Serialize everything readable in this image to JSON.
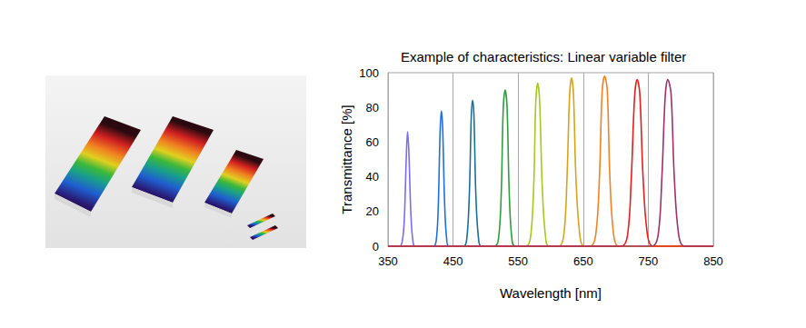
{
  "chart_data": {
    "type": "line",
    "title": "Example of characteristics: Linear variable filter",
    "x_label": "Wavelength [nm]",
    "y_label": "Transmittance [%]",
    "xlim": [
      350,
      850
    ],
    "xticks": [
      350,
      450,
      550,
      650,
      750,
      850
    ],
    "ylim": [
      0,
      100
    ],
    "yticks": [
      0,
      20,
      40,
      60,
      80,
      100
    ],
    "grid": true,
    "series": [
      {
        "color": "#7b6cf0",
        "x": [
          350,
          368,
          372,
          375,
          378,
          380,
          382,
          385,
          388,
          392,
          850
        ],
        "values": [
          0,
          0,
          3,
          15,
          50,
          66,
          55,
          20,
          4,
          0,
          0
        ]
      },
      {
        "color": "#1f6fe0",
        "x": [
          350,
          420,
          424,
          427,
          430,
          432,
          434,
          437,
          440,
          444,
          850
        ],
        "values": [
          0,
          0,
          3,
          20,
          65,
          78,
          68,
          25,
          5,
          0,
          0
        ]
      },
      {
        "color": "#1a6f96",
        "x": [
          350,
          466,
          471,
          475,
          478,
          480,
          482,
          485,
          489,
          494,
          850
        ],
        "values": [
          0,
          0,
          4,
          30,
          75,
          84,
          76,
          30,
          5,
          0,
          0
        ]
      },
      {
        "color": "#2e9e3e",
        "x": [
          350,
          514,
          520,
          524,
          527,
          530,
          533,
          536,
          540,
          546,
          850
        ],
        "values": [
          0,
          0,
          5,
          30,
          78,
          90,
          80,
          35,
          6,
          0,
          0
        ]
      },
      {
        "color": "#a6c81e",
        "x": [
          350,
          562,
          569,
          574,
          577,
          580,
          583,
          587,
          592,
          598,
          850
        ],
        "values": [
          0,
          0,
          5,
          35,
          82,
          94,
          84,
          35,
          6,
          0,
          0
        ]
      },
      {
        "color": "#d4a41a",
        "x": [
          350,
          612,
          620,
          625,
          629,
          632,
          635,
          639,
          645,
          652,
          850
        ],
        "values": [
          0,
          0,
          6,
          38,
          86,
          97,
          88,
          38,
          6,
          0,
          0
        ]
      },
      {
        "color": "#f08224",
        "x": [
          350,
          660,
          669,
          675,
          679,
          683,
          687,
          691,
          697,
          705,
          850
        ],
        "values": [
          0,
          0,
          6,
          40,
          88,
          98,
          90,
          40,
          6,
          0,
          0
        ]
      },
      {
        "color": "#e2201c",
        "x": [
          350,
          708,
          718,
          724,
          729,
          733,
          737,
          742,
          749,
          758,
          850
        ],
        "values": [
          0,
          0,
          6,
          40,
          86,
          96,
          88,
          40,
          6,
          0,
          0
        ]
      },
      {
        "color": "#a0306a",
        "x": [
          350,
          755,
          765,
          771,
          776,
          780,
          785,
          790,
          797,
          806,
          850
        ],
        "values": [
          0,
          0,
          6,
          40,
          86,
          96,
          88,
          40,
          6,
          0,
          0
        ]
      }
    ]
  }
}
